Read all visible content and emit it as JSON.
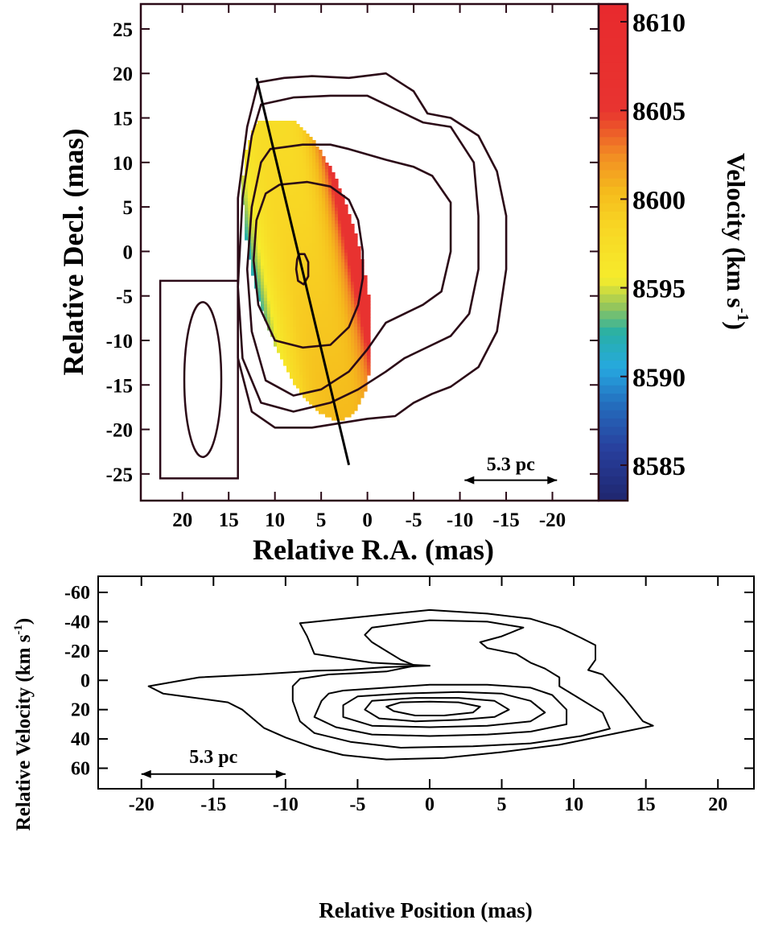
{
  "chart_data": [
    {
      "type": "heatmap",
      "xlabel": "Relative R.A. (mas)",
      "ylabel": "Relative Decl. (mas)",
      "xlim": [
        24.5,
        -25
      ],
      "ylim": [
        -28,
        27.8
      ],
      "xticks": [
        20,
        15,
        10,
        5,
        0,
        -5,
        -10,
        -15,
        -20
      ],
      "xtick_labels": [
        "20",
        "15",
        "10",
        "5",
        "0",
        "-5",
        "-10",
        "-15",
        "-20"
      ],
      "yticks": [
        25,
        20,
        15,
        10,
        5,
        0,
        -5,
        -10,
        -15,
        -20,
        -25
      ],
      "ytick_labels": [
        "25",
        "20",
        "15",
        "10",
        "5",
        "0",
        "-5",
        "-10",
        "-15",
        "-20",
        "-25"
      ],
      "colorbar": {
        "label": "Velocity (km s-1)",
        "label_main": "Velocity (km s",
        "label_sup": "-1",
        "label_close": ")",
        "range": [
          8583,
          8611
        ],
        "ticks": [
          8610,
          8605,
          8600,
          8595,
          8590,
          8585
        ],
        "tick_labels": [
          "8610",
          "8605",
          "8600",
          "8595",
          "8590",
          "8585"
        ]
      },
      "velocity_field": {
        "center": [
          6.8,
          -1.5
        ],
        "gradient": "red (~8606 km/s) at north-west edge, yellow (~8597-8600 km/s) across the centre, blue (~8586 km/s) at south-east edge"
      },
      "contours": [
        {
          "level": 1,
          "points": [
            [
              11.8,
              19
            ],
            [
              9,
              19.5
            ],
            [
              6,
              19.7
            ],
            [
              2,
              19.5
            ],
            [
              -2,
              20
            ],
            [
              -5,
              18
            ],
            [
              -6.5,
              15.5
            ],
            [
              -9,
              15
            ],
            [
              -12,
              13
            ],
            [
              -14,
              9
            ],
            [
              -15,
              4
            ],
            [
              -15,
              -2
            ],
            [
              -14,
              -9
            ],
            [
              -12,
              -13
            ],
            [
              -9,
              -15.2
            ],
            [
              -7,
              -16
            ],
            [
              -5,
              -17
            ],
            [
              -3,
              -18.5
            ],
            [
              0,
              -18.8
            ],
            [
              3,
              -19.3
            ],
            [
              6,
              -19.8
            ],
            [
              10,
              -19.8
            ],
            [
              12.5,
              -18
            ],
            [
              14,
              -12
            ],
            [
              14,
              -2
            ],
            [
              14,
              6
            ],
            [
              13,
              14
            ]
          ]
        },
        {
          "level": 2,
          "points": [
            [
              11.5,
              16.5
            ],
            [
              8,
              17.3
            ],
            [
              4,
              17.5
            ],
            [
              0,
              17.5
            ],
            [
              -3,
              16
            ],
            [
              -6,
              14.5
            ],
            [
              -9,
              14
            ],
            [
              -11.5,
              10
            ],
            [
              -12,
              4
            ],
            [
              -12,
              -2
            ],
            [
              -11,
              -7
            ],
            [
              -9,
              -9.5
            ],
            [
              -6,
              -11
            ],
            [
              -4,
              -12
            ],
            [
              -2,
              -13.5
            ],
            [
              1,
              -15.5
            ],
            [
              4,
              -17
            ],
            [
              8,
              -18
            ],
            [
              11.5,
              -17
            ],
            [
              13.5,
              -12
            ],
            [
              14,
              -4
            ],
            [
              13.5,
              6
            ],
            [
              12.5,
              13
            ]
          ]
        },
        {
          "level": 3,
          "points": [
            [
              10.5,
              11.5
            ],
            [
              7,
              12
            ],
            [
              4,
              12
            ],
            [
              2,
              11.5
            ],
            [
              -2,
              10.3
            ],
            [
              -5,
              9.5
            ],
            [
              -7,
              8.5
            ],
            [
              -9,
              5.5
            ],
            [
              -9,
              0
            ],
            [
              -8,
              -4.5
            ],
            [
              -6,
              -6
            ],
            [
              -4,
              -7
            ],
            [
              -2,
              -8
            ],
            [
              0,
              -11
            ],
            [
              2,
              -13.5
            ],
            [
              5,
              -15.5
            ],
            [
              8,
              -16.2
            ],
            [
              11,
              -14.5
            ],
            [
              12.5,
              -9
            ],
            [
              13,
              -2
            ],
            [
              12.5,
              5
            ],
            [
              11.5,
              10
            ]
          ]
        },
        {
          "level": 4,
          "points": [
            [
              9.5,
              7.5
            ],
            [
              6.5,
              7.8
            ],
            [
              4,
              7.3
            ],
            [
              2,
              5.8
            ],
            [
              1,
              3.5
            ],
            [
              0.5,
              0
            ],
            [
              0.5,
              -3
            ],
            [
              1,
              -6
            ],
            [
              2,
              -8.5
            ],
            [
              4,
              -10.5
            ],
            [
              7,
              -10.8
            ],
            [
              10,
              -10
            ],
            [
              11.8,
              -6
            ],
            [
              12.3,
              -1
            ],
            [
              12,
              3.5
            ],
            [
              11,
              6.5
            ]
          ]
        },
        {
          "level": 5,
          "points": [
            [
              7.4,
              -0.3
            ],
            [
              6.8,
              -0.3
            ],
            [
              6.4,
              -1.2
            ],
            [
              6.4,
              -2.8
            ],
            [
              6.9,
              -3.7
            ],
            [
              7.5,
              -3.3
            ],
            [
              7.7,
              -2
            ],
            [
              7.6,
              -0.9
            ]
          ]
        }
      ],
      "cut_line": {
        "from": [
          12,
          19.5
        ],
        "to": [
          2,
          -24
        ]
      },
      "beam": {
        "box": {
          "ra": [
            22.4,
            14
          ],
          "dec": [
            -3.3,
            -25.5
          ]
        },
        "ellipse": {
          "center": [
            17.8,
            -14.4
          ],
          "ra_radius": 2,
          "dec_radius": 8.7
        }
      },
      "scale_bar": {
        "label": "5.3 pc",
        "from_ra": -10.5,
        "to_ra": -20.5,
        "dec": -25.7
      }
    },
    {
      "type": "line",
      "xlabel": "Relative Position (mas)",
      "ylabel": "Relative Velocity (km s-1)",
      "ylabel_main": "Relative Velocity (km s",
      "ylabel_sup": "-1",
      "ylabel_close": ")",
      "xlim": [
        -23,
        22.5
      ],
      "ylim": [
        74,
        -71
      ],
      "xticks": [
        -20,
        -15,
        -10,
        -5,
        0,
        5,
        10,
        15,
        20
      ],
      "xtick_labels": [
        "-20",
        "-15",
        "-10",
        "-5",
        "0",
        "5",
        "10",
        "15",
        "20"
      ],
      "yticks": [
        -60,
        -40,
        -20,
        0,
        20,
        40,
        60
      ],
      "ytick_labels": [
        "-60",
        "-40",
        "-20",
        "0",
        "20",
        "40",
        "60"
      ],
      "contours": [
        {
          "level": 1,
          "points": [
            [
              -19.5,
              4
            ],
            [
              -16,
              -2
            ],
            [
              -12,
              -4
            ],
            [
              -8,
              -6.5
            ],
            [
              -6,
              -7
            ],
            [
              -3,
              -9
            ],
            [
              0,
              -10
            ],
            [
              -2,
              -11
            ],
            [
              -4,
              -12
            ],
            [
              -8,
              -18
            ],
            [
              -8.5,
              -30
            ],
            [
              -9,
              -39
            ],
            [
              -6,
              -42
            ],
            [
              -3,
              -45
            ],
            [
              0,
              -48
            ],
            [
              4,
              -45.5
            ],
            [
              7,
              -42
            ],
            [
              9,
              -36
            ],
            [
              10.5,
              -29
            ],
            [
              11.5,
              -24
            ],
            [
              11.5,
              -14
            ],
            [
              11,
              -7
            ],
            [
              12,
              -4
            ],
            [
              13.5,
              12
            ],
            [
              14.8,
              28
            ],
            [
              15.5,
              31
            ],
            [
              13.5,
              35
            ],
            [
              9,
              44
            ],
            [
              5,
              49
            ],
            [
              1,
              53
            ],
            [
              -3,
              54
            ],
            [
              -6,
              51
            ],
            [
              -8,
              46
            ],
            [
              -10,
              39
            ],
            [
              -11.5,
              32.5
            ],
            [
              -13,
              20
            ],
            [
              -14,
              15
            ],
            [
              -18.5,
              9
            ]
          ]
        },
        {
          "level": 2,
          "points": [
            [
              -4,
              -36
            ],
            [
              0,
              -41
            ],
            [
              4,
              -40
            ],
            [
              6.5,
              -36
            ],
            [
              5,
              -30
            ],
            [
              3.5,
              -26
            ],
            [
              4,
              -22
            ],
            [
              6,
              -18
            ],
            [
              7,
              -12
            ],
            [
              8,
              -8
            ],
            [
              9,
              -2
            ],
            [
              9,
              4
            ],
            [
              10,
              10
            ],
            [
              12,
              22
            ],
            [
              12.5,
              33
            ],
            [
              10.5,
              38
            ],
            [
              7,
              43
            ],
            [
              3,
              45
            ],
            [
              -2,
              46
            ],
            [
              -5.5,
              42
            ],
            [
              -8,
              36
            ],
            [
              -9,
              28
            ],
            [
              -9.5,
              14
            ],
            [
              -9.5,
              4
            ],
            [
              -9,
              -1
            ],
            [
              -7,
              -4
            ],
            [
              -5,
              -5
            ],
            [
              -3,
              -6
            ],
            [
              -1,
              -10
            ],
            [
              -2,
              -14
            ],
            [
              -3,
              -20
            ],
            [
              -4,
              -26
            ],
            [
              -4.5,
              -31
            ]
          ]
        },
        {
          "level": 3,
          "points": [
            [
              -6,
              7
            ],
            [
              -3,
              5
            ],
            [
              0,
              3
            ],
            [
              4,
              3
            ],
            [
              7,
              5
            ],
            [
              8.5,
              10
            ],
            [
              9.5,
              20
            ],
            [
              9.5,
              30
            ],
            [
              7,
              35
            ],
            [
              4,
              37
            ],
            [
              0,
              38
            ],
            [
              -4,
              37
            ],
            [
              -6.5,
              32
            ],
            [
              -8,
              25
            ],
            [
              -7.5,
              14
            ],
            [
              -7,
              9
            ]
          ]
        },
        {
          "level": 4,
          "points": [
            [
              -5,
              11
            ],
            [
              -2,
              9
            ],
            [
              2,
              8
            ],
            [
              5,
              9
            ],
            [
              7,
              14
            ],
            [
              8,
              22
            ],
            [
              7,
              28
            ],
            [
              4,
              31
            ],
            [
              0,
              32
            ],
            [
              -4,
              31
            ],
            [
              -6,
              25
            ],
            [
              -6,
              17
            ]
          ]
        },
        {
          "level": 5,
          "points": [
            [
              -4,
              14
            ],
            [
              -1,
              12
            ],
            [
              2,
              12
            ],
            [
              4.5,
              14
            ],
            [
              5.5,
              20
            ],
            [
              4.5,
              25
            ],
            [
              2,
              27
            ],
            [
              -1,
              28
            ],
            [
              -3.5,
              26
            ],
            [
              -4.5,
              20
            ]
          ]
        },
        {
          "level": 6,
          "points": [
            [
              -2,
              15
            ],
            [
              0,
              14.5
            ],
            [
              2,
              15
            ],
            [
              3.5,
              18
            ],
            [
              3,
              22
            ],
            [
              1,
              24
            ],
            [
              -1,
              24
            ],
            [
              -2.5,
              21
            ],
            [
              -3,
              18
            ]
          ]
        }
      ],
      "scale_bar": {
        "label": "5.3 pc",
        "from_x": -20,
        "to_x": -10,
        "y": 64
      }
    }
  ]
}
